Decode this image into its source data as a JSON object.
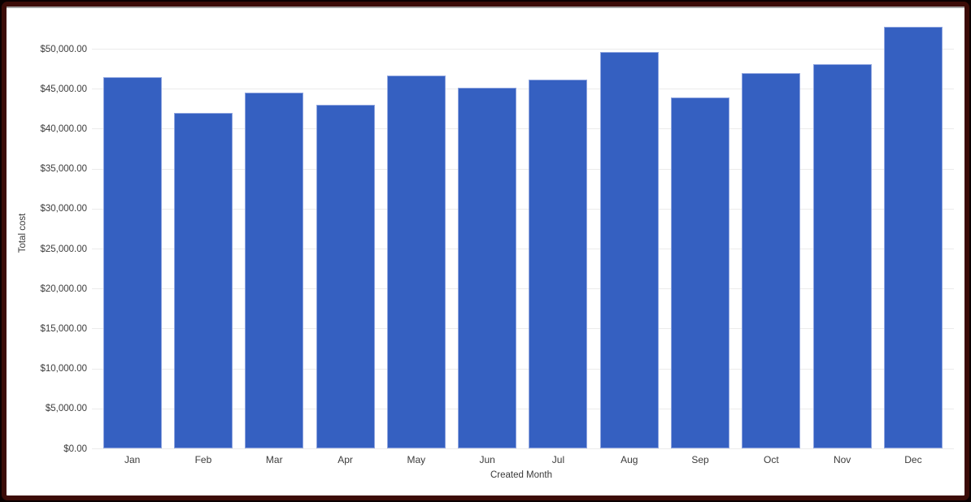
{
  "frame": {
    "outer_border_color": "#0a0101",
    "border_color": "#3c0c08",
    "background": "#ffffff",
    "top_edge_color": "#a5a5a5"
  },
  "chart_data": {
    "type": "bar",
    "title": "",
    "categories": [
      "Jan",
      "Feb",
      "Mar",
      "Apr",
      "May",
      "Jun",
      "Jul",
      "Aug",
      "Sep",
      "Oct",
      "Nov",
      "Dec"
    ],
    "values": [
      46500,
      42000,
      44600,
      43000,
      46700,
      45200,
      46200,
      49600,
      44000,
      47000,
      48100,
      52800
    ],
    "xlabel": "Created Month",
    "ylabel": "Total cost",
    "ylim": [
      0,
      53000
    ],
    "yticks": [
      0,
      5000,
      10000,
      15000,
      20000,
      25000,
      30000,
      35000,
      40000,
      45000,
      50000
    ],
    "ytick_labels": [
      "$0.00",
      "$5,000.00",
      "$10,000.00",
      "$15,000.00",
      "$20,000.00",
      "$25,000.00",
      "$30,000.00",
      "$35,000.00",
      "$40,000.00",
      "$45,000.00",
      "$50,000.00"
    ],
    "grid": true,
    "legend": "none",
    "bar_color": "#3560c1",
    "bar_edge_color": "#8fa5df",
    "gridline_color": "#ebebeb",
    "axis_text_color": "#3c3c3c"
  }
}
